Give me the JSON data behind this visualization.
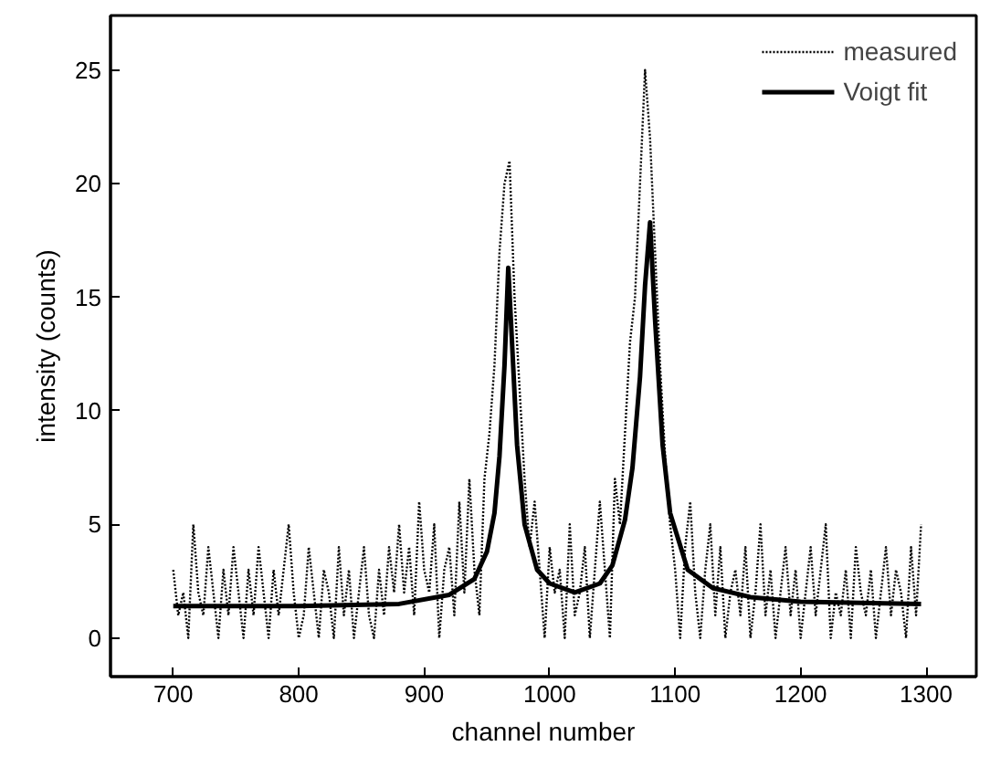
{
  "chart_data": {
    "type": "line",
    "xlabel": "channel number",
    "ylabel": "intensity (counts)",
    "xlim": [
      650,
      1340
    ],
    "ylim": [
      -1.7,
      27.4
    ],
    "xticks": [
      700,
      800,
      900,
      1000,
      1100,
      1200,
      1300
    ],
    "yticks": [
      0,
      5,
      10,
      15,
      20,
      25
    ],
    "grid": false,
    "legend": "top right",
    "series": [
      {
        "name": "measured",
        "color": "#000000",
        "line_style": "dotted",
        "x": [
          700,
          704,
          708,
          712,
          716,
          720,
          724,
          728,
          732,
          736,
          740,
          744,
          748,
          752,
          756,
          760,
          764,
          768,
          772,
          776,
          780,
          784,
          788,
          792,
          796,
          800,
          804,
          808,
          812,
          816,
          820,
          824,
          828,
          832,
          836,
          840,
          844,
          848,
          852,
          856,
          860,
          864,
          868,
          872,
          876,
          880,
          884,
          888,
          892,
          896,
          900,
          904,
          908,
          912,
          916,
          920,
          924,
          928,
          932,
          936,
          940,
          944,
          948,
          952,
          956,
          960,
          964,
          968,
          972,
          976,
          980,
          984,
          988,
          992,
          996,
          1000,
          1004,
          1008,
          1012,
          1016,
          1020,
          1024,
          1028,
          1032,
          1036,
          1040,
          1044,
          1048,
          1052,
          1056,
          1060,
          1064,
          1068,
          1072,
          1076,
          1080,
          1084,
          1088,
          1092,
          1096,
          1100,
          1104,
          1108,
          1112,
          1116,
          1120,
          1124,
          1128,
          1132,
          1136,
          1140,
          1144,
          1148,
          1152,
          1156,
          1160,
          1164,
          1168,
          1172,
          1176,
          1180,
          1184,
          1188,
          1192,
          1196,
          1200,
          1204,
          1208,
          1212,
          1216,
          1220,
          1224,
          1228,
          1232,
          1236,
          1240,
          1244,
          1248,
          1252,
          1256,
          1260,
          1264,
          1268,
          1272,
          1276,
          1280,
          1284,
          1288,
          1292,
          1296
        ],
        "values": [
          3,
          1,
          2,
          0,
          5,
          2,
          1,
          4,
          2,
          0,
          3,
          1,
          4,
          2,
          0,
          3,
          1,
          4,
          2,
          0,
          3,
          1,
          3,
          5,
          2,
          0,
          1,
          4,
          2,
          0,
          3,
          2,
          0,
          4,
          1,
          3,
          0,
          2,
          4,
          1,
          0,
          3,
          1,
          4,
          2,
          5,
          2,
          4,
          1,
          6,
          3,
          2,
          5,
          0,
          3,
          4,
          1,
          6,
          2,
          7,
          3,
          1,
          7,
          9,
          12,
          17,
          20,
          21,
          15,
          11,
          7,
          4,
          6,
          3,
          0,
          4,
          2,
          3,
          0,
          5,
          1,
          2,
          4,
          0,
          3,
          6,
          3,
          0,
          7,
          5,
          9,
          13,
          15,
          20,
          25,
          22,
          17,
          12,
          8,
          5,
          3,
          0,
          4,
          6,
          2,
          0,
          3,
          5,
          1,
          4,
          0,
          2,
          3,
          1,
          4,
          0,
          2,
          5,
          1,
          3,
          0,
          2,
          4,
          1,
          3,
          0,
          2,
          4,
          1,
          3,
          5,
          0,
          2,
          1,
          3,
          0,
          4,
          2,
          1,
          3,
          0,
          2,
          4,
          1,
          3,
          2,
          0,
          4,
          1,
          5
        ]
      },
      {
        "name": "Voigt fit",
        "color": "#000000",
        "line_style": "solid",
        "x": [
          700,
          800,
          880,
          920,
          940,
          950,
          956,
          960,
          964,
          967,
          970,
          974,
          980,
          990,
          1000,
          1020,
          1040,
          1050,
          1060,
          1066,
          1072,
          1076,
          1080,
          1084,
          1090,
          1096,
          1110,
          1130,
          1160,
          1200,
          1296
        ],
        "values": [
          1.4,
          1.4,
          1.5,
          1.9,
          2.6,
          3.8,
          5.5,
          8,
          12,
          16.3,
          13,
          8.5,
          5,
          3,
          2.4,
          2,
          2.4,
          3.2,
          5.2,
          7.5,
          11.5,
          15.5,
          18.3,
          14,
          8.5,
          5.5,
          3,
          2.2,
          1.8,
          1.6,
          1.5
        ]
      }
    ]
  }
}
